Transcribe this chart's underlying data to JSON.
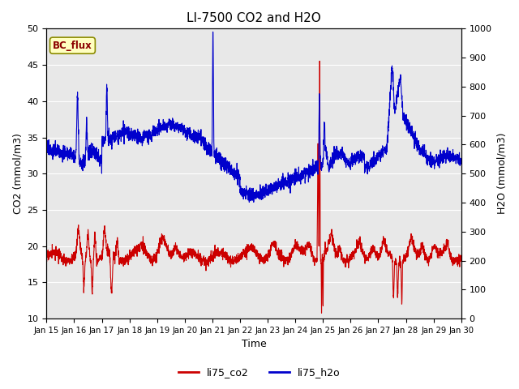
{
  "title": "LI-7500 CO2 and H2O",
  "xlabel": "Time",
  "ylabel_left": "CO2 (mmol/m3)",
  "ylabel_right": "H2O (mmol/m3)",
  "annotation_text": "BC_flux",
  "annotation_color": "#8B0000",
  "annotation_bg": "#FFFFC0",
  "annotation_edge": "#8B8B00",
  "legend_labels": [
    "li75_co2",
    "li75_h2o"
  ],
  "legend_colors": [
    "#CC0000",
    "#0000CC"
  ],
  "co2_color": "#CC0000",
  "h2o_color": "#0000CC",
  "ylim_left": [
    10,
    50
  ],
  "ylim_right": [
    0,
    1000
  ],
  "yticks_left": [
    10,
    15,
    20,
    25,
    30,
    35,
    40,
    45,
    50
  ],
  "yticks_right": [
    0,
    100,
    200,
    300,
    400,
    500,
    600,
    700,
    800,
    900,
    1000
  ],
  "xtick_labels": [
    "Jan 15",
    "Jan 16",
    "Jan 17",
    "Jan 18",
    "Jan 19",
    "Jan 20",
    "Jan 21",
    "Jan 22",
    "Jan 23",
    "Jan 24",
    "Jan 25",
    "Jan 26",
    "Jan 27",
    "Jan 28",
    "Jan 29",
    "Jan 30"
  ],
  "background_color": "#E8E8E8",
  "line_width": 0.8,
  "figsize": [
    6.4,
    4.8
  ],
  "dpi": 100
}
